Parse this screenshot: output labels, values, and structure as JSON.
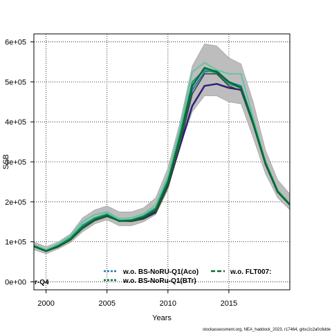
{
  "chart_data": {
    "type": "line",
    "title": "",
    "xlabel": "Years",
    "ylabel": "SSB",
    "xlim": [
      1999,
      2020
    ],
    "ylim": [
      -20000,
      620000
    ],
    "x_ticks": [
      2000,
      2005,
      2010,
      2015
    ],
    "x_tick_labels": [
      "2000",
      "2005",
      "2010",
      "2015"
    ],
    "y_ticks": [
      0,
      100000,
      200000,
      300000,
      400000,
      500000,
      600000
    ],
    "y_tick_labels": [
      "0e+00",
      "1e+05",
      "2e+05",
      "3e+05",
      "4e+05",
      "5e+05",
      "6e+05"
    ],
    "grid": true,
    "years": [
      1999,
      2000,
      2001,
      2002,
      2003,
      2004,
      2005,
      2006,
      2007,
      2008,
      2009,
      2010,
      2011,
      2012,
      2013,
      2014,
      2015,
      2016,
      2017,
      2018,
      2019,
      2020
    ],
    "band": {
      "color": "#bdbdbd",
      "upper": [
        100000,
        88000,
        100000,
        120000,
        160000,
        180000,
        190000,
        175000,
        175000,
        185000,
        210000,
        285000,
        400000,
        540000,
        595000,
        590000,
        560000,
        545000,
        450000,
        330000,
        255000,
        220000
      ],
      "lower": [
        80000,
        70000,
        82000,
        98000,
        125000,
        145000,
        155000,
        140000,
        140000,
        150000,
        168000,
        230000,
        340000,
        425000,
        465000,
        465000,
        450000,
        445000,
        360000,
        270000,
        210000,
        180000
      ]
    },
    "series": [
      {
        "name": "",
        "color": "#1f78b4",
        "width": 2,
        "values": [
          90000,
          78000,
          90000,
          108000,
          138000,
          158000,
          168000,
          153000,
          153000,
          160000,
          182000,
          250000,
          360000,
          480000,
          525000,
          528000,
          500000,
          490000,
          400000,
          300000,
          228000,
          195000
        ]
      },
      {
        "name": "",
        "color": "#2d1e78",
        "width": 2.5,
        "values": [
          89000,
          77000,
          88000,
          106000,
          135000,
          155000,
          165000,
          153000,
          152000,
          158000,
          175000,
          240000,
          340000,
          440000,
          490000,
          495000,
          485000,
          480000,
          395000,
          295000,
          225000,
          193000
        ]
      },
      {
        "name": "",
        "color": "#1b9e77",
        "width": 2,
        "values": [
          91000,
          79000,
          91000,
          110000,
          142000,
          160000,
          170000,
          153000,
          155000,
          165000,
          185000,
          255000,
          370000,
          500000,
          530000,
          522000,
          495000,
          485000,
          398000,
          298000,
          227000,
          194000
        ]
      },
      {
        "name": "",
        "color": "#66c2a5",
        "width": 2,
        "values": [
          93000,
          80000,
          95000,
          115000,
          150000,
          168000,
          175000,
          158000,
          160000,
          170000,
          192000,
          265000,
          385000,
          525000,
          548000,
          530000,
          520000,
          520000,
          410000,
          302000,
          230000,
          196000
        ]
      },
      {
        "name": "",
        "color": "#3a3a3a",
        "width": 1.5,
        "values": [
          88000,
          76000,
          87000,
          104000,
          133000,
          153000,
          163000,
          152000,
          151000,
          157000,
          172000,
          238000,
          345000,
          470000,
          520000,
          520000,
          490000,
          478000,
          392000,
          293000,
          224000,
          192000
        ]
      },
      {
        "name": "",
        "color": "#006d2c",
        "width": 2.5,
        "values": [
          89000,
          77000,
          89000,
          106000,
          136000,
          156000,
          166000,
          152000,
          153000,
          162000,
          180000,
          248000,
          360000,
          490000,
          535000,
          525000,
          500000,
          485000,
          397000,
          297000,
          226000,
          193000
        ]
      }
    ],
    "legend": [
      {
        "label": "w.o. BS-NoRU-Q1(Aco)",
        "color": "#1f78b4",
        "dash": "3,2"
      },
      {
        "label": "w.o. BS-NoRu-Q1(BTr)",
        "color": "#006d2c",
        "dash": "3,2"
      },
      {
        "label": "w.o. FLT007:",
        "color": "#006d2c",
        "dash": "6,3"
      }
    ],
    "edge_label": "r-Q4",
    "legend_placement": "bottom"
  },
  "footer": {
    "credit": "stockassessment.org, NEA_haddock_2023, r17464, gitsc2c2a0c6dde"
  }
}
